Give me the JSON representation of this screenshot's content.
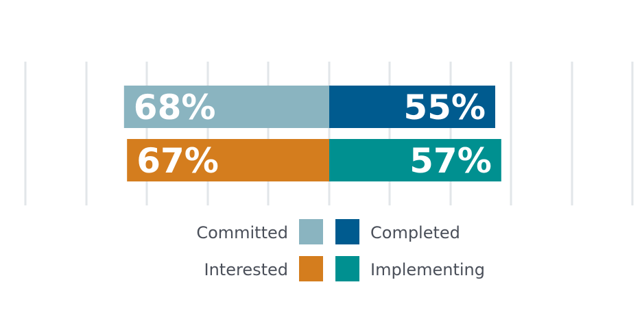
{
  "chart_data": {
    "type": "bar",
    "orientation": "diverging-horizontal",
    "grid": true,
    "legend_position": "bottom-center",
    "rows": [
      {
        "left": {
          "name": "Committed",
          "value": 68,
          "label": "68%",
          "color": "#8ab4c0"
        },
        "right": {
          "name": "Completed",
          "value": 55,
          "label": "55%",
          "color": "#005b8f"
        }
      },
      {
        "left": {
          "name": "Interested",
          "value": 67,
          "label": "67%",
          "color": "#d47d1e"
        },
        "right": {
          "name": "Implementing",
          "value": 57,
          "label": "57%",
          "color": "#009090"
        }
      }
    ],
    "legend": [
      {
        "name": "Committed",
        "color": "#8ab4c0"
      },
      {
        "name": "Completed",
        "color": "#005b8f"
      },
      {
        "name": "Interested",
        "color": "#d47d1e"
      },
      {
        "name": "Implementing",
        "color": "#009090"
      }
    ]
  }
}
